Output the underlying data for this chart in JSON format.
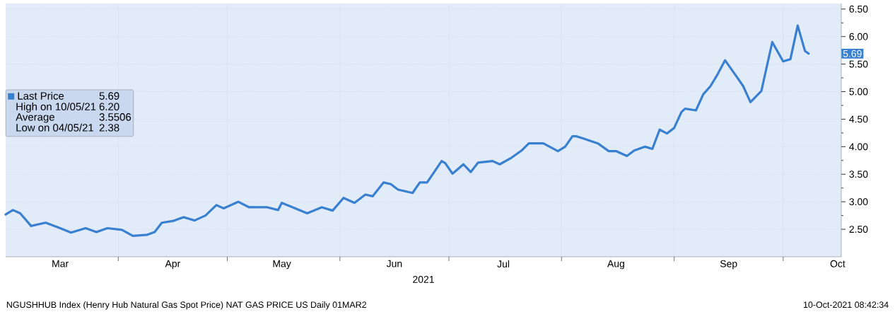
{
  "chart_data": {
    "type": "line",
    "xlabel": "2021",
    "x": [
      "2021-03-01",
      "2021-03-03",
      "2021-03-05",
      "2021-03-08",
      "2021-03-12",
      "2021-03-16",
      "2021-03-19",
      "2021-03-23",
      "2021-03-26",
      "2021-03-29",
      "2021-04-02",
      "2021-04-05",
      "2021-04-09",
      "2021-04-11",
      "2021-04-13",
      "2021-04-16",
      "2021-04-19",
      "2021-04-22",
      "2021-04-25",
      "2021-04-28",
      "2021-04-30",
      "2021-05-04",
      "2021-05-07",
      "2021-05-12",
      "2021-05-15",
      "2021-05-16",
      "2021-05-19",
      "2021-05-23",
      "2021-05-27",
      "2021-05-30",
      "2021-06-02",
      "2021-06-05",
      "2021-06-08",
      "2021-06-10",
      "2021-06-13",
      "2021-06-15",
      "2021-06-17",
      "2021-06-21",
      "2021-06-23",
      "2021-06-25",
      "2021-06-29",
      "2021-06-30",
      "2021-07-02",
      "2021-07-05",
      "2021-07-07",
      "2021-07-09",
      "2021-07-13",
      "2021-07-15",
      "2021-07-18",
      "2021-07-21",
      "2021-07-23",
      "2021-07-27",
      "2021-07-31",
      "2021-08-02",
      "2021-08-04",
      "2021-08-05",
      "2021-08-07",
      "2021-08-11",
      "2021-08-14",
      "2021-08-16",
      "2021-08-19",
      "2021-08-21",
      "2021-08-24",
      "2021-08-26",
      "2021-08-28",
      "2021-08-30",
      "2021-09-01",
      "2021-09-03",
      "2021-09-04",
      "2021-09-07",
      "2021-09-09",
      "2021-09-11",
      "2021-09-13",
      "2021-09-15",
      "2021-09-18",
      "2021-09-20",
      "2021-09-22",
      "2021-09-25",
      "2021-09-28",
      "2021-10-01",
      "2021-10-03",
      "2021-10-05",
      "2021-10-07",
      "2021-10-08"
    ],
    "series": [
      {
        "name": "Last Price",
        "color": "#3a80d0",
        "values": [
          2.77,
          2.85,
          2.79,
          2.56,
          2.62,
          2.52,
          2.44,
          2.52,
          2.45,
          2.52,
          2.49,
          2.38,
          2.4,
          2.45,
          2.62,
          2.65,
          2.72,
          2.66,
          2.75,
          2.94,
          2.88,
          3.0,
          2.9,
          2.9,
          2.85,
          2.98,
          2.9,
          2.79,
          2.9,
          2.84,
          3.07,
          2.98,
          3.13,
          3.1,
          3.35,
          3.32,
          3.22,
          3.16,
          3.35,
          3.35,
          3.74,
          3.7,
          3.51,
          3.68,
          3.54,
          3.71,
          3.74,
          3.68,
          3.79,
          3.93,
          4.06,
          4.06,
          3.92,
          4.0,
          4.19,
          4.19,
          4.15,
          4.06,
          3.92,
          3.92,
          3.83,
          3.93,
          4.0,
          3.96,
          4.31,
          4.24,
          4.34,
          4.63,
          4.69,
          4.66,
          4.95,
          5.1,
          5.32,
          5.57,
          5.29,
          5.1,
          4.81,
          5.01,
          5.9,
          5.55,
          5.59,
          6.2,
          5.74,
          5.69
        ]
      }
    ],
    "xlim": [
      "2021-03-01",
      "2021-10-17"
    ],
    "xticks": [
      {
        "value": "2021-03-16",
        "label": "Mar"
      },
      {
        "value": "2021-04-01",
        "label": null
      },
      {
        "value": "2021-04-16",
        "label": "Apr"
      },
      {
        "value": "2021-05-01",
        "label": null
      },
      {
        "value": "2021-05-16",
        "label": "May"
      },
      {
        "value": "2021-06-01",
        "label": null
      },
      {
        "value": "2021-06-16",
        "label": "Jun"
      },
      {
        "value": "2021-07-01",
        "label": null
      },
      {
        "value": "2021-07-16",
        "label": "Jul"
      },
      {
        "value": "2021-08-01",
        "label": null
      },
      {
        "value": "2021-08-16",
        "label": "Aug"
      },
      {
        "value": "2021-09-01",
        "label": null
      },
      {
        "value": "2021-09-16",
        "label": "Sep"
      },
      {
        "value": "2021-10-01",
        "label": null
      },
      {
        "value": "2021-10-16",
        "label": "Oct"
      }
    ],
    "ylim": [
      2.0,
      6.6
    ],
    "yticks": [
      {
        "value": 2.5,
        "label": "2.50"
      },
      {
        "value": 3.0,
        "label": "3.00"
      },
      {
        "value": 3.5,
        "label": "3.50"
      },
      {
        "value": 4.0,
        "label": "4.00"
      },
      {
        "value": 4.5,
        "label": "4.50"
      },
      {
        "value": 5.0,
        "label": "5.00"
      },
      {
        "value": 5.5,
        "label": "5.50"
      },
      {
        "value": 6.0,
        "label": "6.00"
      },
      {
        "value": 6.5,
        "label": "6.50"
      }
    ],
    "grid": true,
    "legend": "left",
    "marker": "none",
    "line_style": "solid",
    "annotations": [
      "5.69",
      "High on 10/05/21",
      "6.20",
      "Average",
      "3.5506",
      "Low on 04/05/21",
      "2.38",
      "5.69",
      "NGUSHHUB Index (Henry Hub Natural Gas Spot Price) NAT GAS PRICE US  Daily 01MAR2",
      "10-Oct-2021 08:42:34"
    ]
  }
}
